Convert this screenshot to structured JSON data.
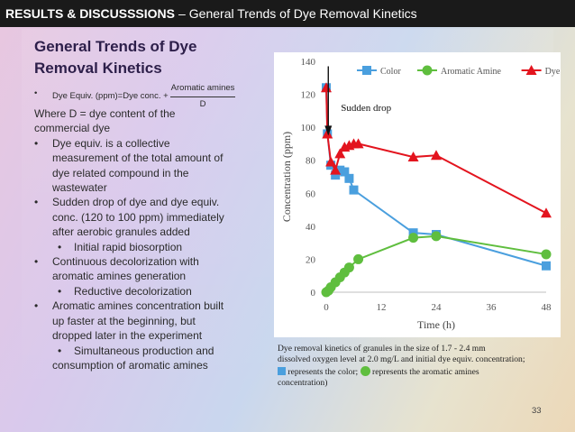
{
  "header": {
    "section": "RESULTS & DISCUSSSIONS",
    "separator": "–",
    "subtitle": "General Trends of Dye Removal Kinetics"
  },
  "slide": {
    "heading_line1": "General Trends of Dye",
    "heading_line2": "Removal Kinetics",
    "formula": {
      "text": "Dye Equiv. (ppm)=Dye conc. +",
      "numerator": "Aromatic amines",
      "denominator": "D"
    },
    "where_line1": "Where D = dye content of the",
    "where_line2": "commercial dye",
    "bullets": [
      {
        "level": 1,
        "text": "Dye equiv. is a collective"
      },
      {
        "level": 0,
        "text": "measurement of the total amount of"
      },
      {
        "level": 0,
        "text": "dye related compound in the"
      },
      {
        "level": 0,
        "text": "wastewater"
      },
      {
        "level": 1,
        "text": "Sudden drop of dye and dye equiv."
      },
      {
        "level": 0,
        "text": "conc. (120 to 100 ppm) immediately"
      },
      {
        "level": 0,
        "text": "after aerobic granules added"
      },
      {
        "level": 2,
        "text": "Initial rapid biosorption"
      },
      {
        "level": 1,
        "text": "Continuous decolorization with"
      },
      {
        "level": 0,
        "text": "aromatic amines generation"
      },
      {
        "level": 2,
        "text": "Reductive decolorization"
      },
      {
        "level": 1,
        "text": "Aromatic amines concentration built"
      },
      {
        "level": 0,
        "text": "up faster at the beginning, but"
      },
      {
        "level": 0,
        "text": "dropped later in the experiment"
      },
      {
        "level": 2,
        "text": "Simultaneous production and"
      },
      {
        "level": 0,
        "text": "consumption of aromatic amines"
      }
    ],
    "page_number": "33"
  },
  "caption": {
    "line1": "Dye removal kinetics of granules in the size of 1.7 - 2.4 mm",
    "line2": "dissolved oxygen level at 2.0 mg/L and initial dye equiv. concentration;",
    "line3a": "represents the color;",
    "line3b": "represents the aromatic amines",
    "line4": "concentration)"
  },
  "colors": {
    "color_series": "#4a9fde",
    "amine_series": "#5fbe3e",
    "dye_equiv_series": "#e3141e",
    "topbar": "#1a1a1a",
    "heading": "#2d1f4a"
  },
  "chart_data": {
    "type": "line",
    "xlabel": "Time (h)",
    "ylabel": "Concentration (ppm)",
    "xlim": [
      0,
      48
    ],
    "ylim": [
      0,
      140
    ],
    "xticks": [
      0,
      12,
      24,
      36,
      48
    ],
    "yticks": [
      0,
      20,
      40,
      60,
      80,
      100,
      120,
      140
    ],
    "legend_position": "top",
    "annotation": "Sudden drop",
    "series": [
      {
        "name": "Color",
        "marker": "square",
        "x": [
          0,
          0.25,
          1,
          2,
          3,
          4,
          5,
          6,
          19,
          24,
          48
        ],
        "y": [
          124,
          96,
          77,
          71,
          74,
          73,
          69,
          62,
          36,
          35,
          16
        ]
      },
      {
        "name": "Aromatic Amine",
        "marker": "circle",
        "x": [
          0,
          0.5,
          1,
          2,
          3,
          4,
          5,
          7,
          19,
          24,
          48
        ],
        "y": [
          0,
          1,
          3,
          6,
          9,
          12,
          15,
          20,
          33,
          34,
          23
        ]
      },
      {
        "name": "Dye Equiv.",
        "marker": "triangle",
        "x": [
          0,
          0.25,
          1,
          2,
          3,
          4,
          5,
          6,
          7,
          19,
          24,
          48
        ],
        "y": [
          124,
          96,
          79,
          74,
          84,
          88,
          89,
          90,
          90,
          82,
          83,
          48
        ]
      }
    ]
  }
}
